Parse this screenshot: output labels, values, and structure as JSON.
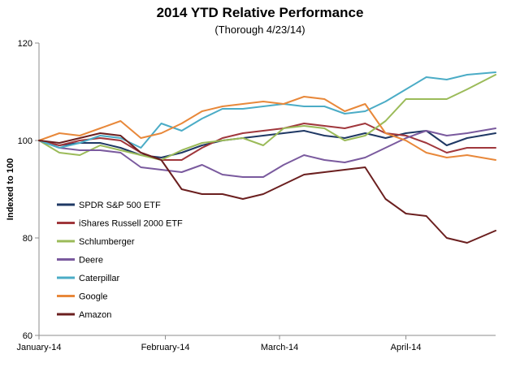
{
  "chart_data": {
    "type": "line",
    "title": "2014 YTD Relative Performance",
    "subtitle": "(Thorough 4/23/14)",
    "ylabel": "Indexed to 100",
    "xlabel": "",
    "ylim": [
      60,
      120
    ],
    "yticks": [
      60,
      80,
      100,
      120
    ],
    "xlim": [
      "2014-01-01",
      "2014-04-23"
    ],
    "xticks": [
      {
        "label": "January-14",
        "date": "2014-01-01"
      },
      {
        "label": "February-14",
        "date": "2014-02-01"
      },
      {
        "label": "March-14",
        "date": "2014-03-01"
      },
      {
        "label": "April-14",
        "date": "2014-04-01"
      }
    ],
    "grid": false,
    "legend": "left-center",
    "x": [
      "2014-01-01",
      "2014-01-06",
      "2014-01-11",
      "2014-01-16",
      "2014-01-21",
      "2014-01-26",
      "2014-01-31",
      "2014-02-05",
      "2014-02-10",
      "2014-02-15",
      "2014-02-20",
      "2014-02-25",
      "2014-03-02",
      "2014-03-07",
      "2014-03-12",
      "2014-03-17",
      "2014-03-22",
      "2014-03-27",
      "2014-04-01",
      "2014-04-06",
      "2014-04-11",
      "2014-04-16",
      "2014-04-23"
    ],
    "series": [
      {
        "name": "SPDR S&P 500 ETF",
        "color": "#1f3864",
        "values": [
          100,
          99.0,
          99.5,
          99.5,
          98.5,
          97.0,
          96.5,
          97.5,
          99.0,
          100.0,
          100.5,
          101.0,
          101.5,
          102.0,
          101.0,
          100.5,
          101.5,
          100.5,
          101.5,
          102.0,
          99.0,
          100.5,
          101.5
        ]
      },
      {
        "name": "iShares Russell 2000 ETF",
        "color": "#a0373c",
        "values": [
          100,
          99.0,
          100.0,
          100.5,
          100.0,
          97.5,
          96.0,
          96.0,
          98.5,
          100.5,
          101.5,
          102.0,
          102.5,
          103.5,
          103.0,
          102.5,
          103.5,
          101.5,
          101.0,
          99.5,
          97.5,
          98.5,
          98.5
        ]
      },
      {
        "name": "Schlumberger",
        "color": "#9bbb59",
        "values": [
          100,
          97.5,
          97.0,
          99.0,
          98.0,
          97.0,
          96.0,
          98.0,
          99.5,
          100.0,
          100.5,
          99.0,
          102.5,
          103.0,
          102.5,
          100.0,
          101.0,
          104.0,
          108.5,
          108.5,
          108.5,
          110.5,
          113.5
        ]
      },
      {
        "name": "Deere",
        "color": "#7a5a9e",
        "values": [
          100,
          98.5,
          98.0,
          98.0,
          97.5,
          94.5,
          94.0,
          93.5,
          95.0,
          93.0,
          92.5,
          92.5,
          95.0,
          97.0,
          96.0,
          95.5,
          96.5,
          98.5,
          100.5,
          102.0,
          101.0,
          101.5,
          102.5
        ]
      },
      {
        "name": "Caterpillar",
        "color": "#4bacc6",
        "values": [
          100,
          98.5,
          99.5,
          101.0,
          100.5,
          98.5,
          103.5,
          102.0,
          104.5,
          106.5,
          106.5,
          107.0,
          107.5,
          107.0,
          107.0,
          105.5,
          106.0,
          108.0,
          110.5,
          113.0,
          112.5,
          113.5,
          114.0
        ]
      },
      {
        "name": "Google",
        "color": "#e8883a",
        "values": [
          100,
          101.5,
          101.0,
          102.5,
          104.0,
          100.5,
          101.5,
          103.5,
          106.0,
          107.0,
          107.5,
          108.0,
          107.5,
          109.0,
          108.5,
          106.0,
          107.5,
          101.5,
          100.0,
          97.5,
          96.5,
          97.0,
          96.0
        ]
      },
      {
        "name": "Amazon",
        "color": "#6b1f1f",
        "values": [
          100,
          99.5,
          100.5,
          101.5,
          101.0,
          97.5,
          96.0,
          90.0,
          89.0,
          89.0,
          88.0,
          89.0,
          91.0,
          93.0,
          93.5,
          94.0,
          94.5,
          88.0,
          85.0,
          84.5,
          80.0,
          79.0,
          81.5
        ]
      }
    ]
  }
}
